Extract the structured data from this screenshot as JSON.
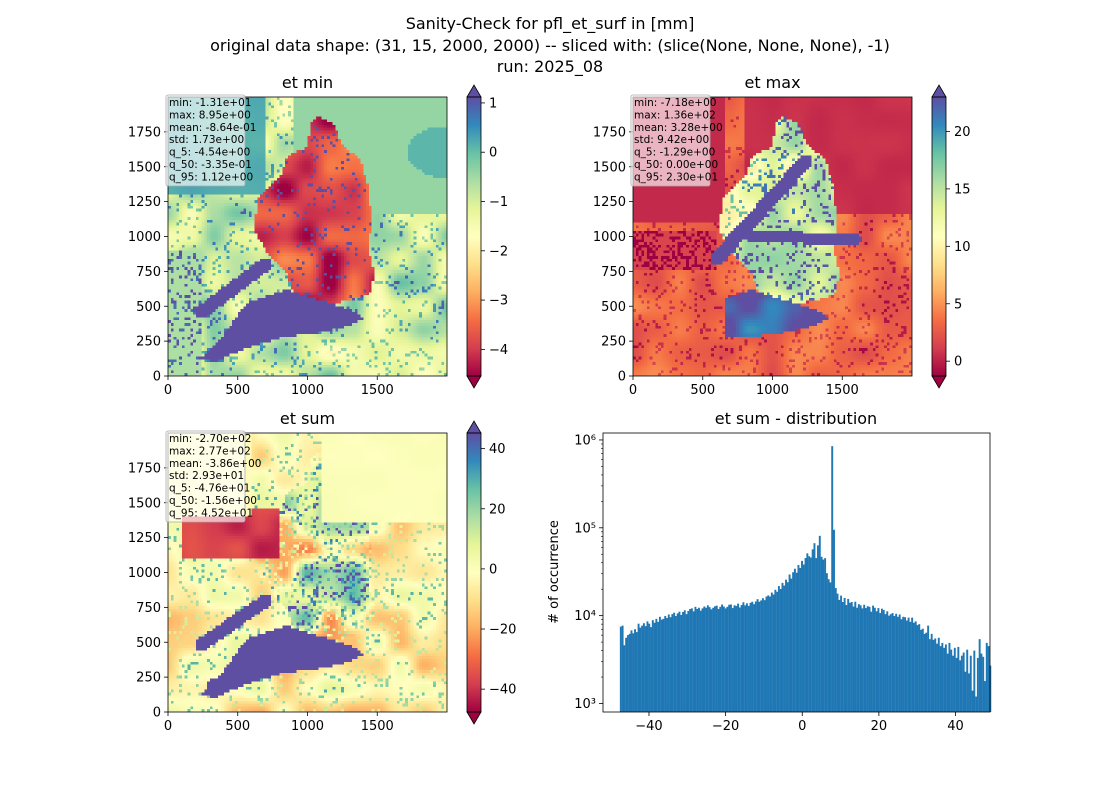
{
  "suptitle": {
    "line1": "Sanity-Check for pfl_et_surf in [mm]",
    "line2": "original data shape: (31, 15, 2000, 2000) -- sliced with: (slice(None, None, None), -1)",
    "line3": "run: 2025_08"
  },
  "colors": {
    "hist_bar": "#1f77b4",
    "spectral": [
      "#9e0142",
      "#d53e4f",
      "#f46d43",
      "#fdae61",
      "#fee08b",
      "#ffffbf",
      "#e6f598",
      "#abdda4",
      "#66c2a5",
      "#3288bd",
      "#5e4fa2"
    ]
  },
  "maps": [
    {
      "id": "min",
      "title": "et min",
      "stats": [
        "min: -1.31e+01",
        "max: 8.95e+00",
        "mean: -8.64e-01",
        "std: 1.73e+00",
        "q_5: -4.54e+00",
        "q_50: -3.35e-01",
        "q_95: 1.12e+00"
      ],
      "x_ticks": [
        "0",
        "500",
        "1000",
        "1500"
      ],
      "y_ticks": [
        "0",
        "250",
        "500",
        "750",
        "1000",
        "1250",
        "1500",
        "1750"
      ],
      "cbar_min": -4.54,
      "cbar_max": 1.12,
      "cbar_ticks": [
        1,
        0,
        -1,
        -2,
        -3,
        -4
      ],
      "cbar_tick_labels": [
        "1",
        "0",
        "−1",
        "−2",
        "−3",
        "−4"
      ]
    },
    {
      "id": "max",
      "title": "et max",
      "stats": [
        "min: -7.18e+00",
        "max: 1.36e+02",
        "mean: 3.28e+00",
        "std: 9.42e+00",
        "q_5: -1.29e+00",
        "q_50: 0.00e+00",
        "q_95: 2.30e+01"
      ],
      "x_ticks": [
        "0",
        "500",
        "1000",
        "1500"
      ],
      "y_ticks": [
        "0",
        "250",
        "500",
        "750",
        "1000",
        "1250",
        "1500",
        "1750"
      ],
      "cbar_min": -1.29,
      "cbar_max": 23.0,
      "cbar_ticks": [
        20,
        15,
        10,
        5,
        0
      ],
      "cbar_tick_labels": [
        "20",
        "15",
        "10",
        "5",
        "0"
      ]
    },
    {
      "id": "sum",
      "title": "et sum",
      "stats": [
        "min: -2.70e+02",
        "max: 2.77e+02",
        "mean: -3.86e+00",
        "std: 2.93e+01",
        "q_5: -4.76e+01",
        "q_50: -1.56e+00",
        "q_95: 4.52e+01"
      ],
      "x_ticks": [
        "0",
        "500",
        "1000",
        "1500"
      ],
      "y_ticks": [
        "0",
        "250",
        "500",
        "750",
        "1000",
        "1250",
        "1500",
        "1750"
      ],
      "cbar_min": -47.6,
      "cbar_max": 45.2,
      "cbar_ticks": [
        40,
        20,
        0,
        -20,
        -40
      ],
      "cbar_tick_labels": [
        "40",
        "20",
        "0",
        "−20",
        "−40"
      ]
    }
  ],
  "chart_data": [
    {
      "type": "heatmap",
      "title": "et min",
      "xlim": [
        0,
        2000
      ],
      "ylim": [
        0,
        2000
      ],
      "colormap": "Spectral",
      "vmin": -4.54,
      "vmax": 1.12
    },
    {
      "type": "heatmap",
      "title": "et max",
      "xlim": [
        0,
        2000
      ],
      "ylim": [
        0,
        2000
      ],
      "colormap": "Spectral",
      "vmin": -1.29,
      "vmax": 23.0
    },
    {
      "type": "heatmap",
      "title": "et sum",
      "xlim": [
        0,
        2000
      ],
      "ylim": [
        0,
        2000
      ],
      "colormap": "Spectral",
      "vmin": -47.6,
      "vmax": 45.2
    },
    {
      "type": "bar",
      "title": "et sum - distribution",
      "ylabel": "# of occurrence",
      "yscale": "log",
      "xlim": [
        -52,
        49
      ],
      "ylim": [
        800,
        1200000
      ],
      "x_ticks": [
        -40,
        -20,
        0,
        20,
        40
      ],
      "x_tick_labels": [
        "−40",
        "−20",
        "0",
        "20",
        "40"
      ],
      "y_ticks": [
        1000,
        10000,
        100000,
        1000000
      ],
      "y_tick_labels": [
        "10³",
        "10⁴",
        "10⁵",
        "10⁶"
      ],
      "bin_start": -47.6,
      "bin_width": 0.4636,
      "counts": [
        7500,
        7700,
        4600,
        5600,
        6000,
        6200,
        6800,
        6300,
        7000,
        6500,
        8100,
        7300,
        7700,
        8200,
        7600,
        8600,
        8100,
        7400,
        8900,
        8300,
        9200,
        8500,
        9700,
        9000,
        9200,
        9900,
        9400,
        10300,
        9600,
        10400,
        10800,
        9900,
        10600,
        11100,
        10200,
        11000,
        11500,
        10400,
        11300,
        11900,
        12100,
        11200,
        12600,
        11900,
        12300,
        11400,
        12100,
        12700,
        12300,
        13100,
        12500,
        11800,
        12300,
        12800,
        13000,
        11900,
        12600,
        13400,
        12700,
        12100,
        12600,
        13300,
        13400,
        12200,
        13100,
        12900,
        13700,
        12400,
        13200,
        14200,
        13100,
        13800,
        12900,
        14000,
        14400,
        13500,
        14500,
        15400,
        14400,
        14900,
        15800,
        15000,
        16500,
        17000,
        16500,
        18300,
        17400,
        19700,
        18700,
        21700,
        20100,
        23600,
        22000,
        25700,
        24000,
        29400,
        26400,
        31200,
        34200,
        30800,
        37700,
        34900,
        42000,
        38200,
        45300,
        51200,
        47500,
        45900,
        56800,
        66800,
        45200,
        63100,
        81000,
        46800,
        43500,
        45100,
        30400,
        26000,
        23900,
        850000,
        95000,
        20600,
        17800,
        15100,
        16900,
        14300,
        15900,
        13200,
        15500,
        14000,
        14300,
        12700,
        14400,
        12300,
        13500,
        13100,
        12100,
        13300,
        12200,
        12800,
        12600,
        11100,
        13000,
        12300,
        11200,
        12200,
        10700,
        12000,
        11600,
        10400,
        11200,
        10000,
        10400,
        10700,
        9900,
        10500,
        9700,
        10300,
        9100,
        9700,
        9600,
        8800,
        9500,
        8500,
        9500,
        8300,
        8600,
        7800,
        8000,
        6900,
        7100,
        6200,
        6400,
        7700,
        5400,
        6200,
        5300,
        5500,
        4800,
        5600,
        4500,
        4900,
        4300,
        4700,
        3700,
        4900,
        4100,
        3500,
        4300,
        3300,
        4400,
        3100,
        3500,
        3800,
        2300,
        4100,
        2200,
        3500,
        1400,
        4000,
        1200,
        3300,
        5400,
        3700,
        3400,
        1800,
        4900,
        4500,
        2700
      ]
    }
  ]
}
